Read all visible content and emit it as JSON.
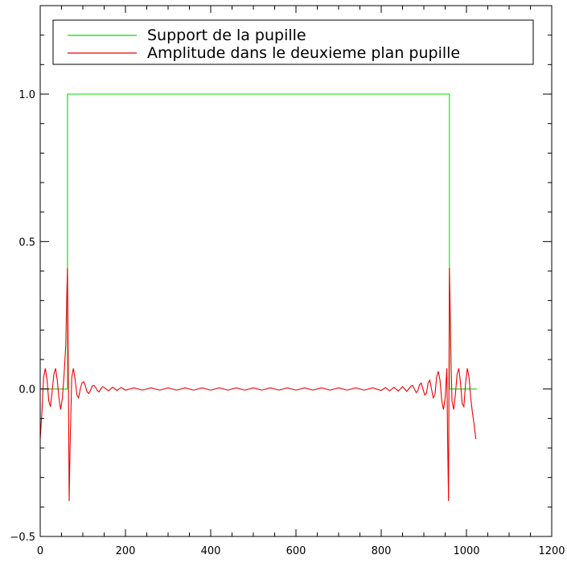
{
  "chart_data": {
    "type": "line",
    "title": "",
    "xlabel": "",
    "ylabel": "",
    "xlim": [
      0,
      1200
    ],
    "ylim": [
      -0.5,
      1.3
    ],
    "x_ticks": [
      0,
      200,
      400,
      600,
      800,
      1000,
      1200
    ],
    "x_tick_labels": [
      "0",
      "200",
      "400",
      "600",
      "800",
      "1000",
      "1200"
    ],
    "y_ticks": [
      -0.5,
      0.0,
      0.5,
      1.0
    ],
    "y_tick_labels": [
      "−0.5",
      "0.0",
      "0.5",
      "1.0"
    ],
    "grid": false,
    "legend_position": "top",
    "series": [
      {
        "name": "Support de la pupille",
        "color": "#00dd00",
        "kind": "step",
        "x": [
          0,
          64,
          64,
          960,
          960,
          1024
        ],
        "y": [
          0,
          0,
          1,
          1,
          0,
          0
        ]
      },
      {
        "name": "Amplitude dans le deuxieme plan pupille",
        "color": "#ee0000",
        "kind": "line",
        "x": [
          0,
          4,
          8,
          12,
          16,
          20,
          24,
          28,
          32,
          36,
          40,
          44,
          48,
          52,
          56,
          60,
          62,
          64,
          66,
          68,
          70,
          74,
          78,
          82,
          86,
          90,
          94,
          98,
          102,
          106,
          110,
          114,
          118,
          122,
          126,
          130,
          134,
          138,
          142,
          146,
          150,
          160,
          170,
          180,
          190,
          200,
          220,
          240,
          260,
          280,
          300,
          320,
          340,
          360,
          380,
          400,
          420,
          440,
          460,
          480,
          500,
          520,
          540,
          560,
          580,
          600,
          620,
          640,
          660,
          680,
          700,
          720,
          740,
          760,
          780,
          800,
          810,
          820,
          830,
          840,
          850,
          860,
          870,
          874,
          878,
          882,
          886,
          890,
          894,
          898,
          902,
          906,
          910,
          914,
          918,
          922,
          926,
          930,
          934,
          938,
          942,
          946,
          950,
          954,
          956,
          958,
          960,
          962,
          964,
          966,
          970,
          974,
          978,
          982,
          986,
          990,
          994,
          998,
          1002,
          1006,
          1010,
          1014,
          1018,
          1022
        ],
        "y": [
          -0.17,
          -0.08,
          0.04,
          0.07,
          0.03,
          -0.04,
          -0.06,
          -0.01,
          0.05,
          0.07,
          0.03,
          -0.03,
          -0.07,
          -0.03,
          0.05,
          0.15,
          0.3,
          0.41,
          0.05,
          -0.38,
          -0.2,
          0.04,
          0.07,
          0.03,
          -0.02,
          -0.03,
          0.0,
          0.02,
          0.025,
          0.01,
          -0.01,
          -0.015,
          -0.005,
          0.01,
          0.012,
          0.005,
          -0.005,
          -0.01,
          0.0,
          0.008,
          0.005,
          -0.006,
          0.006,
          -0.005,
          0.005,
          -0.004,
          0.004,
          -0.004,
          0.004,
          -0.004,
          0.004,
          -0.004,
          0.004,
          -0.004,
          0.004,
          -0.004,
          0.004,
          -0.004,
          0.004,
          -0.004,
          0.004,
          -0.004,
          0.004,
          -0.004,
          0.004,
          -0.004,
          0.004,
          -0.004,
          0.004,
          -0.004,
          0.004,
          -0.004,
          0.004,
          -0.004,
          0.004,
          -0.005,
          0.005,
          -0.006,
          0.006,
          -0.007,
          0.008,
          -0.008,
          0.01,
          0.012,
          0.0,
          -0.012,
          -0.005,
          0.015,
          0.02,
          0.0,
          -0.02,
          -0.015,
          0.02,
          0.03,
          0.0,
          -0.03,
          -0.02,
          0.04,
          0.06,
          0.03,
          -0.04,
          -0.07,
          -0.03,
          0.07,
          -0.2,
          -0.38,
          0.41,
          0.25,
          0.08,
          -0.04,
          -0.07,
          -0.02,
          0.05,
          0.07,
          0.02,
          -0.05,
          -0.06,
          0.02,
          0.07,
          0.04,
          -0.03,
          -0.08,
          -0.12,
          -0.17
        ]
      }
    ]
  }
}
